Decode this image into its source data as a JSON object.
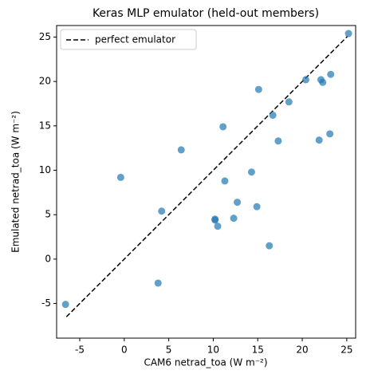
{
  "chart_data": {
    "type": "scatter",
    "title": "Keras MLP emulator (held-out members)",
    "xlabel": "CAM6 netrad_toa (W m⁻²)",
    "ylabel": "Emulated netrad_toa (W m⁻²)",
    "xlim": [
      -7.6,
      26
    ],
    "ylim": [
      -8.9,
      26.3
    ],
    "xticks": [
      -5,
      0,
      5,
      10,
      15,
      20,
      25
    ],
    "yticks": [
      -5,
      0,
      5,
      10,
      15,
      20,
      25
    ],
    "legend": "upper left",
    "series": [
      {
        "name": "points",
        "color": "#1f77b4",
        "x": [
          -6.6,
          -0.4,
          3.8,
          4.2,
          6.4,
          10.2,
          10.2,
          10.5,
          11.1,
          11.3,
          12.3,
          12.7,
          14.3,
          14.9,
          15.1,
          16.3,
          16.7,
          17.3,
          18.5,
          20.4,
          22.1,
          22.3,
          21.9,
          23.1,
          23.2,
          25.2
        ],
        "values": [
          -5.1,
          9.2,
          -2.7,
          5.4,
          12.3,
          4.5,
          4.4,
          3.7,
          14.9,
          8.8,
          4.6,
          6.4,
          9.8,
          5.9,
          19.1,
          1.5,
          16.2,
          13.3,
          17.7,
          20.2,
          20.2,
          19.9,
          13.4,
          14.1,
          20.8,
          25.4
        ]
      }
    ],
    "line": {
      "name": "perfect emulator",
      "color": "#000000",
      "x": [
        -6.5,
        25.1
      ],
      "values": [
        -6.5,
        25.1
      ]
    }
  }
}
